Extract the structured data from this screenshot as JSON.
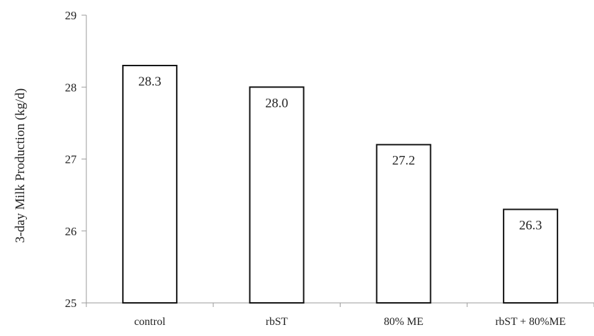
{
  "chart_data": {
    "type": "bar",
    "title": "",
    "xlabel": "",
    "ylabel": "3-day Milk Production (kg/d)",
    "ylim": [
      25,
      29
    ],
    "yticks": [
      25,
      26,
      27,
      28,
      29
    ],
    "categories": [
      "control",
      "rbST",
      "80% ME",
      "rbST + 80%ME"
    ],
    "values": [
      28.3,
      28.0,
      27.2,
      26.3
    ],
    "data_labels": [
      "28.3",
      "28.0",
      "27.2",
      "26.3"
    ],
    "grid": false,
    "legend": "none",
    "colors": {
      "bar_fill": "#ffffff",
      "bar_stroke": "#111111",
      "axis": "#9a9a9a",
      "text": "#222222"
    }
  }
}
